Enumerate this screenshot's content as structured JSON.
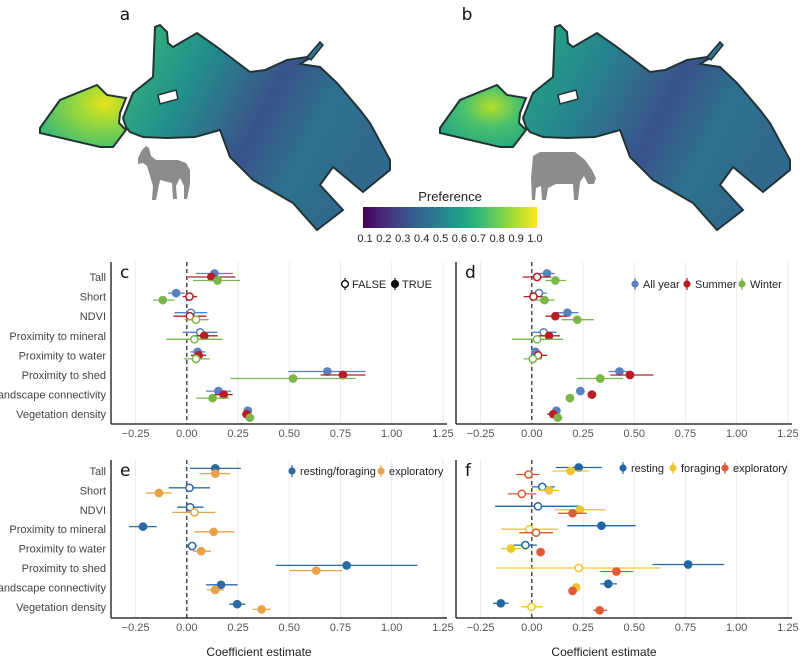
{
  "maps": {
    "panels": [
      {
        "label": "a",
        "animal": "horse"
      },
      {
        "label": "b",
        "animal": "cow"
      }
    ],
    "colorbar": {
      "title": "Preference",
      "ticks": [
        "0.1",
        "0.2",
        "0.3",
        "0.4",
        "0.5",
        "0.6",
        "0.7",
        "0.8",
        "0.9",
        "1.0"
      ],
      "colors": [
        "#440154",
        "#482878",
        "#3e4a89",
        "#31688e",
        "#26828e",
        "#1f9e89",
        "#35b779",
        "#6ece58",
        "#b5de2b",
        "#fde725"
      ]
    }
  },
  "chart_data": [
    {
      "panel": "c",
      "type": "forest",
      "categories": [
        "Tall",
        "Short",
        "NDVI",
        "Proximity to mineral",
        "Proximity to water",
        "Proximity to shed",
        "Landscape connectivity",
        "Vegetation density"
      ],
      "show_categories": true,
      "xlim": [
        -0.37,
        1.27
      ],
      "xticks": [
        "-0.25",
        "0.00",
        "0.25",
        "0.50",
        "0.75",
        "1.00",
        "1.25"
      ],
      "reference_line": 0,
      "xlabel": "",
      "legend": {
        "kind": "significance",
        "labels": [
          "FALSE",
          "TRUE"
        ],
        "placement": "top-right"
      },
      "series": [
        {
          "color": "#5b7fbf",
          "est": [
            0.135,
            -0.052,
            0.02,
            0.065,
            0.053,
            0.686,
            0.154,
            0.298
          ],
          "lo": [
            0.045,
            -0.09,
            -0.06,
            -0.02,
            0.018,
            0.496,
            0.094,
            0.285
          ],
          "hi": [
            0.224,
            -0.01,
            0.1,
            0.15,
            0.09,
            0.872,
            0.216,
            0.31
          ],
          "significant": [
            true,
            true,
            false,
            false,
            true,
            true,
            true,
            true
          ]
        },
        {
          "color": "#b81c24",
          "est": [
            0.12,
            0.013,
            0.015,
            0.085,
            0.058,
            0.762,
            0.18,
            0.292
          ],
          "lo": [
            0.005,
            -0.02,
            -0.065,
            0.03,
            0.02,
            0.653,
            0.126,
            0.269
          ],
          "hi": [
            0.237,
            0.05,
            0.095,
            0.15,
            0.095,
            0.872,
            0.224,
            0.314
          ],
          "significant": [
            true,
            false,
            false,
            true,
            true,
            true,
            true,
            true
          ]
        },
        {
          "color": "#7ab648",
          "est": [
            0.15,
            -0.117,
            0.045,
            0.037,
            0.045,
            0.519,
            0.126,
            0.308
          ],
          "lo": [
            0.03,
            -0.165,
            -0.01,
            -0.1,
            -0.015,
            0.212,
            0.045,
            0.29
          ],
          "hi": [
            0.26,
            -0.06,
            0.107,
            0.175,
            0.113,
            0.823,
            0.207,
            0.33
          ],
          "significant": [
            true,
            true,
            false,
            false,
            false,
            true,
            true,
            true
          ]
        }
      ]
    },
    {
      "panel": "d",
      "type": "forest",
      "categories": [
        "Tall",
        "Short",
        "NDVI",
        "Proximity to mineral",
        "Proximity to water",
        "Proximity to shed",
        "Landscape connectivity",
        "Vegetation density"
      ],
      "show_categories": false,
      "xlim": [
        -0.37,
        1.27
      ],
      "xticks": [
        "-0.25",
        "0.00",
        "0.25",
        "0.50",
        "0.75",
        "1.00",
        "1.25"
      ],
      "reference_line": 0,
      "xlabel": "",
      "legend": {
        "kind": "series",
        "placement": "top-right"
      },
      "series": [
        {
          "name": "All year",
          "color": "#5b7fbf",
          "est": [
            0.074,
            0.035,
            0.174,
            0.058,
            0.018,
            0.428,
            0.237,
            0.12
          ],
          "lo": [
            0.02,
            -0.01,
            0.12,
            0,
            0,
            0.375,
            0.225,
            0.1
          ],
          "hi": [
            0.112,
            0.074,
            0.227,
            0.12,
            0.045,
            0.482,
            0.25,
            0.14
          ],
          "significant": [
            true,
            false,
            true,
            false,
            true,
            true,
            true,
            true
          ]
        },
        {
          "name": "Summer",
          "color": "#b81c24",
          "est": [
            0.026,
            0.008,
            0.115,
            0.084,
            0.031,
            0.479,
            0.293,
            0.105
          ],
          "lo": [
            -0.044,
            -0.04,
            0.067,
            0.03,
            -0.005,
            0.383,
            0.272,
            0.075
          ],
          "hi": [
            0.095,
            0.054,
            0.169,
            0.137,
            0.075,
            0.594,
            0.315,
            0.133
          ],
          "significant": [
            false,
            false,
            true,
            true,
            false,
            true,
            true,
            true
          ]
        },
        {
          "name": "Winter",
          "color": "#7ab648",
          "est": [
            0.115,
            0.062,
            0.222,
            0.026,
            0.005,
            0.334,
            0.186,
            0.127
          ],
          "lo": [
            0.067,
            0.013,
            0.145,
            -0.097,
            -0.04,
            0.219,
            0.17,
            0.105
          ],
          "hi": [
            0.166,
            0.112,
            0.304,
            0.153,
            0.05,
            0.446,
            0.2,
            0.15
          ],
          "significant": [
            true,
            true,
            true,
            false,
            false,
            true,
            true,
            true
          ]
        }
      ]
    },
    {
      "panel": "e",
      "type": "forest",
      "categories": [
        "Tall",
        "Short",
        "NDVI",
        "Proximity to mineral",
        "Proximity to water",
        "Proximity to shed",
        "Landscape connectivity",
        "Vegetation density"
      ],
      "show_categories": true,
      "xlim": [
        -0.37,
        1.27
      ],
      "xticks": [
        "-0.25",
        "0.00",
        "0.25",
        "0.50",
        "0.75",
        "1.00",
        "1.25"
      ],
      "reference_line": 0,
      "xlabel": "Coefficient estimate",
      "legend": {
        "kind": "series",
        "placement": "top-right"
      },
      "series": [
        {
          "name": "resting/foraging",
          "color": "#2b6aa3",
          "est": [
            0.139,
            0.013,
            0.016,
            -0.214,
            0.026,
            0.78,
            0.167,
            0.246
          ],
          "lo": [
            0.016,
            -0.088,
            -0.047,
            -0.282,
            0,
            0.434,
            0.094,
            0.207
          ],
          "hi": [
            0.264,
            0.113,
            0.081,
            -0.146,
            0.049,
            1.126,
            0.248,
            0.285
          ],
          "significant": [
            true,
            false,
            false,
            true,
            false,
            true,
            true,
            true
          ]
        },
        {
          "name": "exploratory",
          "color": "#e8a24a",
          "est": [
            0.139,
            -0.136,
            0.037,
            0.131,
            0.07,
            0.632,
            0.138,
            0.365
          ],
          "lo": [
            0.062,
            -0.2,
            -0.071,
            0.037,
            0.03,
            0.502,
            0.097,
            0.321
          ],
          "hi": [
            0.212,
            -0.073,
            0.139,
            0.232,
            0.118,
            0.758,
            0.183,
            0.41
          ],
          "significant": [
            true,
            true,
            false,
            true,
            true,
            true,
            true,
            true
          ]
        }
      ]
    },
    {
      "panel": "f",
      "type": "forest",
      "categories": [
        "Tall",
        "Short",
        "NDVI",
        "Proximity to mineral",
        "Proximity to water",
        "Proximity to shed",
        "Landscape connectivity",
        "Vegetation density"
      ],
      "show_categories": false,
      "xlim": [
        -0.37,
        1.27
      ],
      "xticks": [
        "-0.25",
        "0.00",
        "0.25",
        "0.50",
        "0.75",
        "1.00",
        "1.25"
      ],
      "reference_line": 0,
      "xlabel": "Coefficient estimate",
      "legend": {
        "kind": "series",
        "placement": "top-right"
      },
      "series": [
        {
          "name": "resting",
          "color": "#2366a6",
          "est": [
            0.229,
            0.051,
            0.03,
            0.34,
            -0.031,
            0.763,
            0.373,
            -0.151
          ],
          "lo": [
            0.117,
            0,
            -0.179,
            0.173,
            -0.09,
            0.589,
            0.334,
            -0.189
          ],
          "hi": [
            0.342,
            0.112,
            0.235,
            0.507,
            0.025,
            0.939,
            0.416,
            -0.113
          ],
          "significant": [
            true,
            false,
            false,
            true,
            false,
            true,
            true,
            true
          ]
        },
        {
          "name": "foraging",
          "color": "#f0c630",
          "est": [
            0.189,
            0.084,
            0.235,
            -0.012,
            -0.102,
            0.229,
            0.217,
            -0.002
          ],
          "lo": [
            0.1,
            0.035,
            0.112,
            -0.151,
            -0.151,
            -0.171,
            0.2,
            -0.053
          ],
          "hi": [
            0.281,
            0.133,
            0.359,
            0.128,
            -0.053,
            0.627,
            0.232,
            0.051
          ],
          "significant": [
            true,
            true,
            true,
            false,
            true,
            false,
            true,
            false
          ]
        },
        {
          "name": "exploratory",
          "color": "#e05a3a",
          "est": [
            -0.016,
            -0.049,
            0.199,
            0.021,
            0.043,
            0.413,
            0.199,
            0.331
          ],
          "lo": [
            -0.077,
            -0.118,
            0.128,
            -0.061,
            0.03,
            0.334,
            0.185,
            0.299
          ],
          "hi": [
            0.038,
            0.021,
            0.268,
            0.104,
            0.056,
            0.495,
            0.213,
            0.368
          ],
          "significant": [
            false,
            false,
            true,
            false,
            true,
            true,
            true,
            true
          ]
        }
      ]
    }
  ]
}
